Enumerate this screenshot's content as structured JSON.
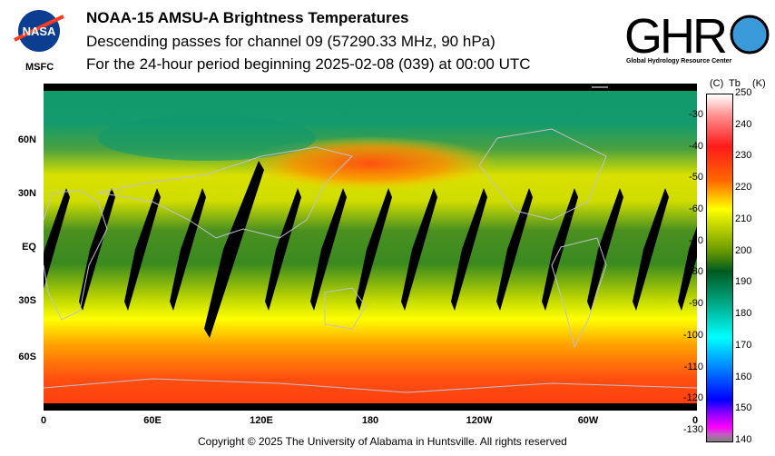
{
  "header": {
    "title": "NOAA-15 AMSU-A Brightness Temperatures",
    "subtitle": "Descending passes for channel 09 (57290.33 MHz, 90 hPa)",
    "period": "For the 24-hour period beginning 2025-02-08 (039) at 00:00 UTC"
  },
  "logos": {
    "nasa": "NASA",
    "msfc": "MSFC",
    "ghrc": "GHRC",
    "ghrc_sub": "Global Hydrology Resource Center"
  },
  "footer": {
    "copyright": "Copyright © 2025 The University of Alabama in Huntsville.  All rights reserved"
  },
  "chart_data": {
    "type": "heatmap",
    "title": "NOAA-15 AMSU-A Brightness Temperatures",
    "lat_ticks": [
      "60N",
      "30N",
      "EQ",
      "30S",
      "60S"
    ],
    "lon_ticks": [
      "0",
      "60E",
      "120E",
      "180",
      "120W",
      "60W",
      "0"
    ],
    "colorbar": {
      "label_c": "(C)",
      "label_tb": "Tb",
      "label_k": "(K)",
      "range_k": [
        140,
        250
      ],
      "k_ticks": [
        "250",
        "240",
        "230",
        "220",
        "210",
        "200",
        "190",
        "180",
        "170",
        "160",
        "150",
        "140"
      ],
      "c_ticks": [
        "-30",
        "-40",
        "-50",
        "-60",
        "-70",
        "-80",
        "-90",
        "-100",
        "-110",
        "-120",
        "-130"
      ]
    },
    "zonal_profile_k": [
      {
        "lat": 90,
        "tb": 197
      },
      {
        "lat": 70,
        "tb": 198
      },
      {
        "lat": 55,
        "tb": 210
      },
      {
        "lat": 45,
        "tb": 220
      },
      {
        "lat": 30,
        "tb": 214
      },
      {
        "lat": 0,
        "tb": 205
      },
      {
        "lat": -30,
        "tb": 214
      },
      {
        "lat": -45,
        "tb": 222
      },
      {
        "lat": -60,
        "tb": 228
      },
      {
        "lat": -80,
        "tb": 232
      }
    ]
  }
}
